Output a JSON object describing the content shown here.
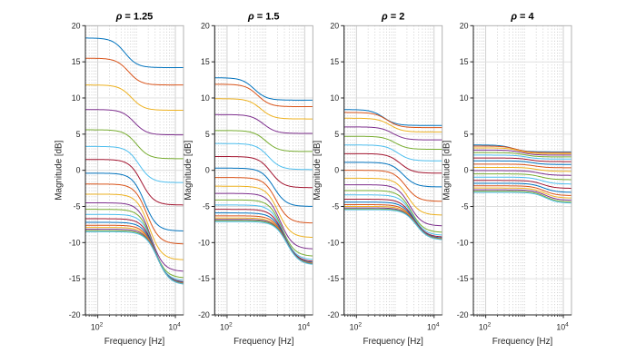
{
  "figure": {
    "background": "#ffffff",
    "axis_color": "#262626",
    "box_light_color": "#ababab",
    "major_grid_color": "#cccccc",
    "hgrid_color": "#dcdcdc",
    "minor_grid_color": "#bdbdbd",
    "tick_label_color": "#262626",
    "title_color": "#000000",
    "xlabel": "Frequency [Hz]",
    "ylabel": "Magnitude [dB]"
  },
  "chart_data": [
    {
      "type": "line",
      "title": "ρ = 1.25",
      "title_parts": {
        "greek": "ρ",
        "suffix": " = 1.25"
      },
      "xlabel": "Frequency [Hz]",
      "ylabel": "Magnitude [dB]",
      "xscale": "log",
      "xlim_hz": [
        48,
        16200
      ],
      "ylim_db": [
        -20,
        20
      ],
      "yticks": [
        -20,
        -15,
        -10,
        -5,
        0,
        5,
        10,
        15,
        20
      ],
      "xtick_labels": [
        {
          "base": "10",
          "exp": "2",
          "hz": 100
        },
        {
          "base": "10",
          "exp": "4",
          "hz": 10000
        }
      ],
      "minor_grid_hz": [
        50,
        60,
        70,
        80,
        90,
        200,
        300,
        400,
        500,
        600,
        700,
        800,
        900,
        1000,
        2000,
        3000,
        4000,
        5000,
        6000,
        7000,
        8000,
        9000
      ],
      "grid": true,
      "transition_width_decades": 0.16,
      "series": [
        {
          "color": "#0072BD",
          "low_db": 18.3,
          "high_db": 14.2,
          "transition_hz": 500
        },
        {
          "color": "#D95319",
          "low_db": 15.5,
          "high_db": 11.8,
          "transition_hz": 620
        },
        {
          "color": "#EDB120",
          "low_db": 11.8,
          "high_db": 8.3,
          "transition_hz": 740
        },
        {
          "color": "#7E2F8E",
          "low_db": 8.4,
          "high_db": 4.9,
          "transition_hz": 870
        },
        {
          "color": "#77AC30",
          "low_db": 5.6,
          "high_db": 1.6,
          "transition_hz": 1000
        },
        {
          "color": "#4DBEEE",
          "low_db": 3.3,
          "high_db": -1.7,
          "transition_hz": 1160
        },
        {
          "color": "#A2142F",
          "low_db": 1.5,
          "high_db": -4.8,
          "transition_hz": 1350
        },
        {
          "color": "#0072BD",
          "low_db": -0.4,
          "high_db": -8.4,
          "transition_hz": 1600
        },
        {
          "color": "#D95319",
          "low_db": -1.9,
          "high_db": -10.2,
          "transition_hz": 1850
        },
        {
          "color": "#EDB120",
          "low_db": -3.3,
          "high_db": -12.4,
          "transition_hz": 2100
        },
        {
          "color": "#7E2F8E",
          "low_db": -4.5,
          "high_db": -14.0,
          "transition_hz": 2350
        },
        {
          "color": "#77AC30",
          "low_db": -5.4,
          "high_db": -14.9,
          "transition_hz": 2600
        },
        {
          "color": "#4DBEEE",
          "low_db": -6.1,
          "high_db": -15.3,
          "transition_hz": 2800
        },
        {
          "color": "#A2142F",
          "low_db": -6.7,
          "high_db": -15.5,
          "transition_hz": 2950
        },
        {
          "color": "#0072BD",
          "low_db": -7.2,
          "high_db": -15.6,
          "transition_hz": 3080
        },
        {
          "color": "#D95319",
          "low_db": -7.6,
          "high_db": -15.7,
          "transition_hz": 3180
        },
        {
          "color": "#EDB120",
          "low_db": -7.9,
          "high_db": -15.75,
          "transition_hz": 3280
        },
        {
          "color": "#7E2F8E",
          "low_db": -8.15,
          "high_db": -15.8,
          "transition_hz": 3360
        },
        {
          "color": "#77AC30",
          "low_db": -8.35,
          "high_db": -15.82,
          "transition_hz": 3420
        },
        {
          "color": "#4DBEEE",
          "low_db": -8.5,
          "high_db": -15.85,
          "transition_hz": 3480
        }
      ]
    },
    {
      "type": "line",
      "title": "ρ = 1.5",
      "title_parts": {
        "greek": "ρ",
        "suffix": " = 1.5"
      },
      "xlabel": "Frequency [Hz]",
      "ylabel": "Magnitude [dB]",
      "xscale": "log",
      "xlim_hz": [
        48,
        16200
      ],
      "ylim_db": [
        -20,
        20
      ],
      "yticks": [
        -20,
        -15,
        -10,
        -5,
        0,
        5,
        10,
        15,
        20
      ],
      "xtick_labels": [
        {
          "base": "10",
          "exp": "2",
          "hz": 100
        },
        {
          "base": "10",
          "exp": "4",
          "hz": 10000
        }
      ],
      "minor_grid_hz": [
        50,
        60,
        70,
        80,
        90,
        200,
        300,
        400,
        500,
        600,
        700,
        800,
        900,
        1000,
        2000,
        3000,
        4000,
        5000,
        6000,
        7000,
        8000,
        9000
      ],
      "grid": true,
      "transition_width_decades": 0.16,
      "series": [
        {
          "color": "#0072BD",
          "low_db": 12.8,
          "high_db": 9.7,
          "transition_hz": 500
        },
        {
          "color": "#D95319",
          "low_db": 11.9,
          "high_db": 8.8,
          "transition_hz": 620
        },
        {
          "color": "#EDB120",
          "low_db": 9.9,
          "high_db": 7.1,
          "transition_hz": 740
        },
        {
          "color": "#7E2F8E",
          "low_db": 7.7,
          "high_db": 5.1,
          "transition_hz": 870
        },
        {
          "color": "#77AC30",
          "low_db": 5.5,
          "high_db": 2.6,
          "transition_hz": 1000
        },
        {
          "color": "#4DBEEE",
          "low_db": 3.7,
          "high_db": 0.1,
          "transition_hz": 1160
        },
        {
          "color": "#A2142F",
          "low_db": 1.9,
          "high_db": -2.4,
          "transition_hz": 1350
        },
        {
          "color": "#0072BD",
          "low_db": 0.3,
          "high_db": -5.0,
          "transition_hz": 1600
        },
        {
          "color": "#D95319",
          "low_db": -1.0,
          "high_db": -7.3,
          "transition_hz": 1850
        },
        {
          "color": "#EDB120",
          "low_db": -2.2,
          "high_db": -9.3,
          "transition_hz": 2100
        },
        {
          "color": "#7E2F8E",
          "low_db": -3.2,
          "high_db": -10.9,
          "transition_hz": 2350
        },
        {
          "color": "#77AC30",
          "low_db": -4.1,
          "high_db": -11.9,
          "transition_hz": 2600
        },
        {
          "color": "#4DBEEE",
          "low_db": -4.8,
          "high_db": -12.4,
          "transition_hz": 2800
        },
        {
          "color": "#A2142F",
          "low_db": -5.4,
          "high_db": -12.65,
          "transition_hz": 2950
        },
        {
          "color": "#0072BD",
          "low_db": -5.9,
          "high_db": -12.8,
          "transition_hz": 3080
        },
        {
          "color": "#D95319",
          "low_db": -6.3,
          "high_db": -12.9,
          "transition_hz": 3180
        },
        {
          "color": "#EDB120",
          "low_db": -6.6,
          "high_db": -12.95,
          "transition_hz": 3280
        },
        {
          "color": "#7E2F8E",
          "low_db": -6.8,
          "high_db": -13.0,
          "transition_hz": 3360
        },
        {
          "color": "#77AC30",
          "low_db": -6.95,
          "high_db": -13.05,
          "transition_hz": 3420
        },
        {
          "color": "#4DBEEE",
          "low_db": -7.1,
          "high_db": -13.1,
          "transition_hz": 3480
        }
      ]
    },
    {
      "type": "line",
      "title": "ρ = 2",
      "title_parts": {
        "greek": "ρ",
        "suffix": " = 2"
      },
      "xlabel": "Frequency [Hz]",
      "ylabel": "Magnitude [dB]",
      "xscale": "log",
      "xlim_hz": [
        48,
        16200
      ],
      "ylim_db": [
        -20,
        20
      ],
      "yticks": [
        -20,
        -15,
        -10,
        -5,
        0,
        5,
        10,
        15,
        20
      ],
      "xtick_labels": [
        {
          "base": "10",
          "exp": "2",
          "hz": 100
        },
        {
          "base": "10",
          "exp": "4",
          "hz": 10000
        }
      ],
      "minor_grid_hz": [
        50,
        60,
        70,
        80,
        90,
        200,
        300,
        400,
        500,
        600,
        700,
        800,
        900,
        1000,
        2000,
        3000,
        4000,
        5000,
        6000,
        7000,
        8000,
        9000
      ],
      "grid": true,
      "transition_width_decades": 0.16,
      "series": [
        {
          "color": "#0072BD",
          "low_db": 8.4,
          "high_db": 6.2,
          "transition_hz": 500
        },
        {
          "color": "#D95319",
          "low_db": 8.0,
          "high_db": 5.9,
          "transition_hz": 620
        },
        {
          "color": "#EDB120",
          "low_db": 7.2,
          "high_db": 5.3,
          "transition_hz": 740
        },
        {
          "color": "#7E2F8E",
          "low_db": 6.0,
          "high_db": 4.2,
          "transition_hz": 870
        },
        {
          "color": "#77AC30",
          "low_db": 4.7,
          "high_db": 2.9,
          "transition_hz": 1000
        },
        {
          "color": "#4DBEEE",
          "low_db": 3.5,
          "high_db": 1.3,
          "transition_hz": 1160
        },
        {
          "color": "#A2142F",
          "low_db": 2.3,
          "high_db": -0.4,
          "transition_hz": 1350
        },
        {
          "color": "#0072BD",
          "low_db": 1.1,
          "high_db": -2.3,
          "transition_hz": 1600
        },
        {
          "color": "#D95319",
          "low_db": 0.0,
          "high_db": -4.3,
          "transition_hz": 1850
        },
        {
          "color": "#EDB120",
          "low_db": -1.1,
          "high_db": -6.2,
          "transition_hz": 2100
        },
        {
          "color": "#7E2F8E",
          "low_db": -2.0,
          "high_db": -7.7,
          "transition_hz": 2350
        },
        {
          "color": "#77AC30",
          "low_db": -2.8,
          "high_db": -8.6,
          "transition_hz": 2600
        },
        {
          "color": "#4DBEEE",
          "low_db": -3.4,
          "high_db": -9.0,
          "transition_hz": 2800
        },
        {
          "color": "#A2142F",
          "low_db": -4.0,
          "high_db": -9.25,
          "transition_hz": 2950
        },
        {
          "color": "#0072BD",
          "low_db": -4.4,
          "high_db": -9.4,
          "transition_hz": 3080
        },
        {
          "color": "#D95319",
          "low_db": -4.75,
          "high_db": -9.5,
          "transition_hz": 3180
        },
        {
          "color": "#EDB120",
          "low_db": -5.0,
          "high_db": -9.55,
          "transition_hz": 3280
        },
        {
          "color": "#7E2F8E",
          "low_db": -5.2,
          "high_db": -9.6,
          "transition_hz": 3360
        },
        {
          "color": "#77AC30",
          "low_db": -5.35,
          "high_db": -9.62,
          "transition_hz": 3420
        },
        {
          "color": "#4DBEEE",
          "low_db": -5.45,
          "high_db": -9.65,
          "transition_hz": 3480
        }
      ]
    },
    {
      "type": "line",
      "title": "ρ = 4",
      "title_parts": {
        "greek": "ρ",
        "suffix": " = 4"
      },
      "xlabel": "Frequency [Hz]",
      "ylabel": "Magnitude [dB]",
      "xscale": "log",
      "xlim_hz": [
        48,
        16200
      ],
      "ylim_db": [
        -20,
        20
      ],
      "yticks": [
        -20,
        -15,
        -10,
        -5,
        0,
        5,
        10,
        15,
        20
      ],
      "xtick_labels": [
        {
          "base": "10",
          "exp": "2",
          "hz": 100
        },
        {
          "base": "10",
          "exp": "4",
          "hz": 10000
        }
      ],
      "minor_grid_hz": [
        50,
        60,
        70,
        80,
        90,
        200,
        300,
        400,
        500,
        600,
        700,
        800,
        900,
        1000,
        2000,
        3000,
        4000,
        5000,
        6000,
        7000,
        8000,
        9000
      ],
      "grid": true,
      "transition_width_decades": 0.16,
      "series": [
        {
          "color": "#0072BD",
          "low_db": 3.5,
          "high_db": 2.55,
          "transition_hz": 500
        },
        {
          "color": "#D95319",
          "low_db": 3.35,
          "high_db": 2.45,
          "transition_hz": 620
        },
        {
          "color": "#EDB120",
          "low_db": 3.1,
          "high_db": 2.3,
          "transition_hz": 740
        },
        {
          "color": "#7E2F8E",
          "low_db": 2.8,
          "high_db": 2.1,
          "transition_hz": 870
        },
        {
          "color": "#77AC30",
          "low_db": 2.45,
          "high_db": 1.85,
          "transition_hz": 1000
        },
        {
          "color": "#4DBEEE",
          "low_db": 2.1,
          "high_db": 1.55,
          "transition_hz": 1160
        },
        {
          "color": "#A2142F",
          "low_db": 1.7,
          "high_db": 1.2,
          "transition_hz": 1350
        },
        {
          "color": "#0072BD",
          "low_db": 1.3,
          "high_db": 0.8,
          "transition_hz": 1600
        },
        {
          "color": "#D95319",
          "low_db": 0.85,
          "high_db": 0.35,
          "transition_hz": 1850
        },
        {
          "color": "#EDB120",
          "low_db": 0.4,
          "high_db": -0.15,
          "transition_hz": 2100
        },
        {
          "color": "#7E2F8E",
          "low_db": -0.05,
          "high_db": -0.7,
          "transition_hz": 2350
        },
        {
          "color": "#77AC30",
          "low_db": -0.5,
          "high_db": -1.3,
          "transition_hz": 2600
        },
        {
          "color": "#4DBEEE",
          "low_db": -0.95,
          "high_db": -1.9,
          "transition_hz": 2800
        },
        {
          "color": "#A2142F",
          "low_db": -1.4,
          "high_db": -2.5,
          "transition_hz": 2950
        },
        {
          "color": "#0072BD",
          "low_db": -1.8,
          "high_db": -3.05,
          "transition_hz": 3080
        },
        {
          "color": "#D95319",
          "low_db": -2.15,
          "high_db": -3.5,
          "transition_hz": 3180
        },
        {
          "color": "#EDB120",
          "low_db": -2.45,
          "high_db": -3.85,
          "transition_hz": 3280
        },
        {
          "color": "#7E2F8E",
          "low_db": -2.7,
          "high_db": -4.15,
          "transition_hz": 3360
        },
        {
          "color": "#77AC30",
          "low_db": -2.9,
          "high_db": -4.4,
          "transition_hz": 3420
        },
        {
          "color": "#4DBEEE",
          "low_db": -3.05,
          "high_db": -4.55,
          "transition_hz": 3480
        }
      ]
    }
  ]
}
